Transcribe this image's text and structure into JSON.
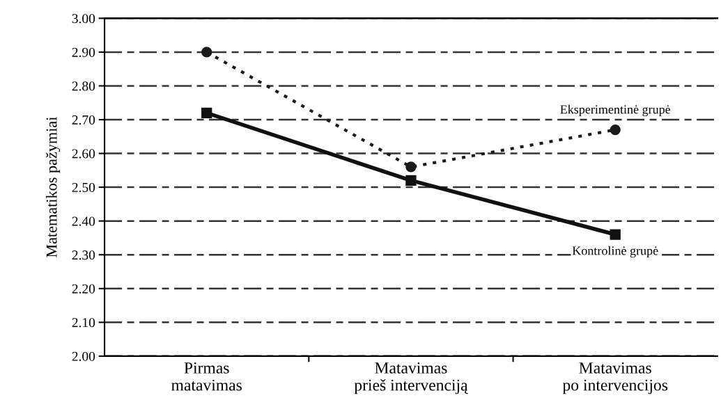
{
  "chart_data": {
    "type": "line",
    "ylabel": "Matematikos pažymiai",
    "categories": [
      "Pirmas\nmatavimas",
      "Matavimas\nprieš intervenciją",
      "Matavimas\npo intervencijos"
    ],
    "series": [
      {
        "name": "Eksperimentinė grupė",
        "color": "#1a1a1a",
        "values": [
          2.9,
          2.56,
          2.67
        ],
        "marker": "circle",
        "line_style": "dotted"
      },
      {
        "name": "Kontrolinė grupė",
        "color": "#111111",
        "values": [
          2.72,
          2.52,
          2.36
        ],
        "marker": "square",
        "line_style": "solid"
      }
    ],
    "ylim": [
      2.0,
      3.0
    ],
    "yticks": [
      {
        "value": 2.0,
        "label": "2.00"
      },
      {
        "value": 2.1,
        "label": "2.10"
      },
      {
        "value": 2.2,
        "label": "2.20"
      },
      {
        "value": 2.3,
        "label": "2.30"
      },
      {
        "value": 2.4,
        "label": "2.40"
      },
      {
        "value": 2.5,
        "label": "2.50"
      },
      {
        "value": 2.6,
        "label": "2.60"
      },
      {
        "value": 2.7,
        "label": "2.70"
      },
      {
        "value": 2.8,
        "label": "2.80"
      },
      {
        "value": 2.9,
        "label": "2.90"
      },
      {
        "value": 3.0,
        "label": "3.00"
      }
    ],
    "grid": "y",
    "legend": false
  }
}
